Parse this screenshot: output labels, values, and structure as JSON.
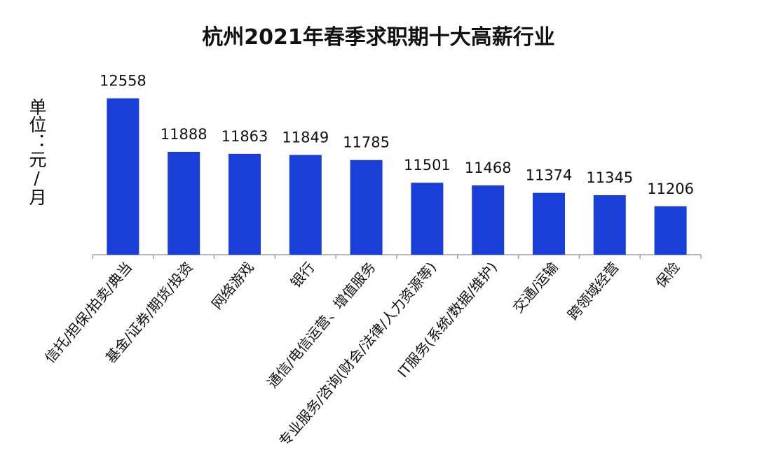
{
  "chart_data": {
    "type": "bar",
    "title": "杭州2021年春季求职期十大高薪行业",
    "ylabel": "单位：元/月",
    "xlabel": "",
    "categories": [
      "信托/担保/拍卖/典当",
      "基金/证券/期货/投资",
      "网络游戏",
      "银行",
      "通信/电信运营、增值服务",
      "专业服务/咨询(财会/法律/人力资源等)",
      "IT服务(系统/数据/维护)",
      "交通/运输",
      "跨领域经营",
      "保险"
    ],
    "values": [
      12558,
      11888,
      11863,
      11849,
      11785,
      11501,
      11468,
      11374,
      11345,
      11206
    ],
    "bar_color": "#1a3fd9",
    "ylim": [
      10600,
      12650
    ],
    "grid": false,
    "legend": "none"
  }
}
